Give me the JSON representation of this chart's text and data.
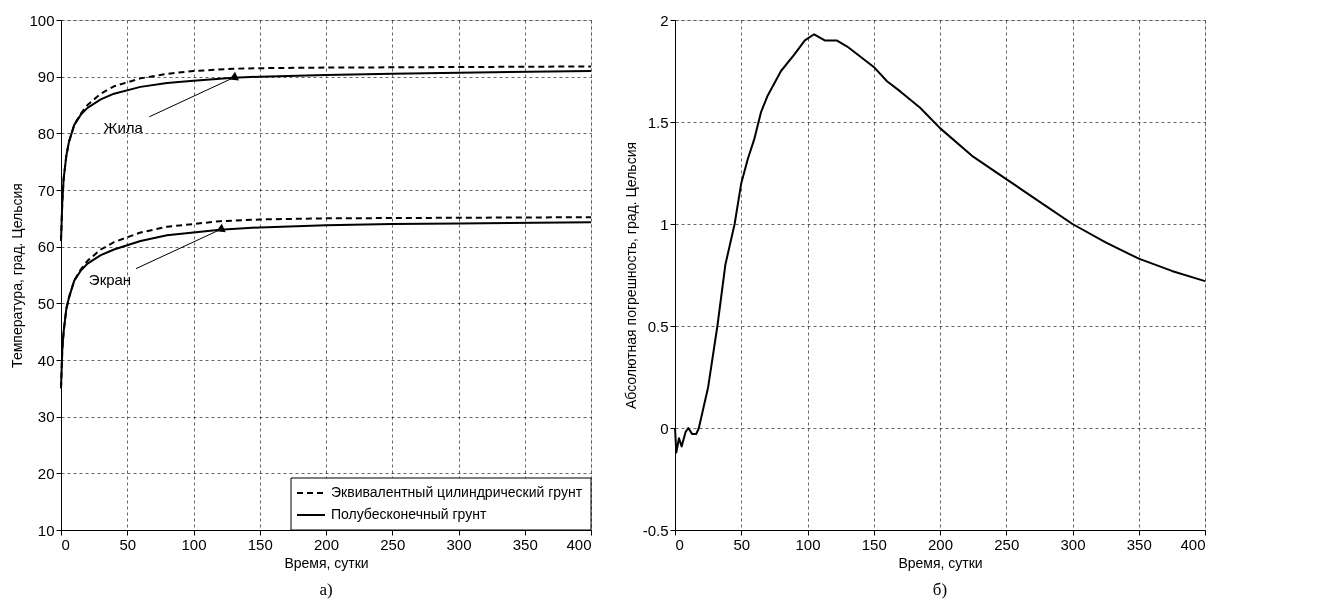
{
  "chart_data": [
    {
      "type": "line",
      "xlabel": "Время, сутки",
      "ylabel": "Температура, град. Цельсия",
      "xlim": [
        0,
        400
      ],
      "ylim": [
        10,
        100
      ],
      "xticks": [
        0,
        50,
        100,
        150,
        200,
        250,
        300,
        350,
        400
      ],
      "yticks": [
        10,
        20,
        30,
        40,
        50,
        60,
        70,
        80,
        90,
        100
      ],
      "grid": true,
      "legend": "bottom right",
      "marker": "none",
      "series": [
        {
          "name": "Эквивалентный цилиндрический грунт",
          "color": "#000000",
          "line_style": "dashed",
          "x": [
            0,
            1,
            2,
            4,
            6,
            10,
            15,
            20,
            30,
            40,
            60,
            80,
            100,
            130,
            150,
            200,
            300,
            400
          ],
          "values": [
            61,
            68,
            72,
            76,
            78.5,
            81.5,
            83.5,
            85,
            87,
            88.3,
            89.7,
            90.5,
            91,
            91.4,
            91.5,
            91.6,
            91.7,
            91.8
          ]
        },
        {
          "name": "Полубесконечный грунт",
          "color": "#000000",
          "line_style": "solid",
          "x": [
            0,
            1,
            2,
            4,
            6,
            10,
            15,
            20,
            30,
            40,
            60,
            80,
            100,
            130,
            150,
            200,
            250,
            300,
            400
          ],
          "values": [
            61,
            68,
            72,
            76,
            78.5,
            81.5,
            83.3,
            84.5,
            86,
            87,
            88.2,
            88.9,
            89.3,
            89.8,
            90,
            90.3,
            90.5,
            90.7,
            91
          ]
        },
        {
          "color": "#000000",
          "line_style": "dashed",
          "x": [
            0,
            1,
            2,
            4,
            6,
            10,
            15,
            20,
            30,
            40,
            60,
            80,
            100,
            120,
            150,
            200,
            300,
            400
          ],
          "values": [
            35,
            42,
            45,
            49,
            51,
            54,
            56,
            57.5,
            59.5,
            60.8,
            62.5,
            63.5,
            64,
            64.5,
            64.8,
            65,
            65.1,
            65.2
          ]
        },
        {
          "color": "#000000",
          "line_style": "solid",
          "x": [
            0,
            1,
            2,
            4,
            6,
            10,
            15,
            20,
            30,
            40,
            60,
            80,
            100,
            120,
            150,
            200,
            250,
            300,
            400
          ],
          "values": [
            35,
            42,
            45,
            49,
            51,
            54,
            55.8,
            57,
            58.5,
            59.5,
            61,
            62,
            62.5,
            63,
            63.4,
            63.8,
            64,
            64.1,
            64.3
          ]
        }
      ],
      "annotations": [
        {
          "text": "Жила",
          "x": 130,
          "y": 89.8
        },
        {
          "text": "Экран",
          "x": 120,
          "y": 63
        },
        "а)"
      ]
    },
    {
      "type": "line",
      "xlabel": "Время, сутки",
      "ylabel": "Абсолютная погрешность, град. Цельсия",
      "xlim": [
        0,
        400
      ],
      "ylim": [
        -0.5,
        2
      ],
      "xticks": [
        0,
        50,
        100,
        150,
        200,
        250,
        300,
        350,
        400
      ],
      "yticks": [
        -0.5,
        0,
        0.5,
        1,
        1.5,
        2
      ],
      "grid": true,
      "marker": "none",
      "series": [
        {
          "color": "#000000",
          "line_style": "solid",
          "x": [
            0,
            1,
            3,
            5,
            8,
            10,
            13,
            16,
            18,
            25,
            32,
            38,
            45,
            50,
            55,
            60,
            65,
            70,
            80,
            90,
            98,
            105,
            113,
            122,
            130,
            140,
            150,
            160,
            170,
            185,
            200,
            225,
            250,
            275,
            300,
            325,
            350,
            375,
            400
          ],
          "values": [
            0,
            -0.12,
            -0.05,
            -0.09,
            -0.02,
            0,
            -0.03,
            -0.03,
            0,
            0.2,
            0.5,
            0.8,
            1.0,
            1.2,
            1.32,
            1.42,
            1.55,
            1.63,
            1.75,
            1.83,
            1.9,
            1.93,
            1.9,
            1.9,
            1.87,
            1.82,
            1.77,
            1.7,
            1.65,
            1.57,
            1.47,
            1.33,
            1.22,
            1.11,
            1.0,
            0.91,
            0.83,
            0.77,
            0.72
          ]
        }
      ],
      "annotations": [
        "б)"
      ]
    }
  ]
}
